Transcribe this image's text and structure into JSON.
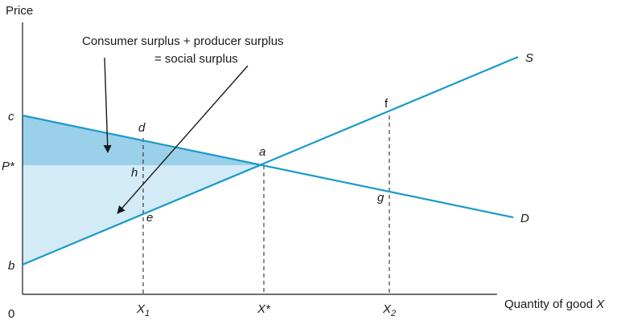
{
  "axes": {
    "y_label": "Price",
    "x_label_prefix": "Quantity of good ",
    "x_label_var": "X",
    "origin": "0"
  },
  "annotation": {
    "line1": "Consumer surplus + producer surplus",
    "line2": "= social surplus"
  },
  "points": {
    "c": "c",
    "p_star": "P*",
    "b": "b",
    "a": "a",
    "d": "d",
    "h": "h",
    "e": "e",
    "f": "f",
    "g": "g"
  },
  "curves": {
    "supply": "S",
    "demand": "D"
  },
  "x_ticks": {
    "x1_main": "X",
    "x1_sub": "1",
    "xstar": "X*",
    "x2_main": "X",
    "x2_sub": "2"
  },
  "colors": {
    "curve": "#1a9ac9",
    "consumer_surplus_fill": "#9ad0ea",
    "producer_surplus_fill": "#d3ebf7",
    "axis": "#1a1a1a",
    "dashed": "#1a1a1a"
  }
}
